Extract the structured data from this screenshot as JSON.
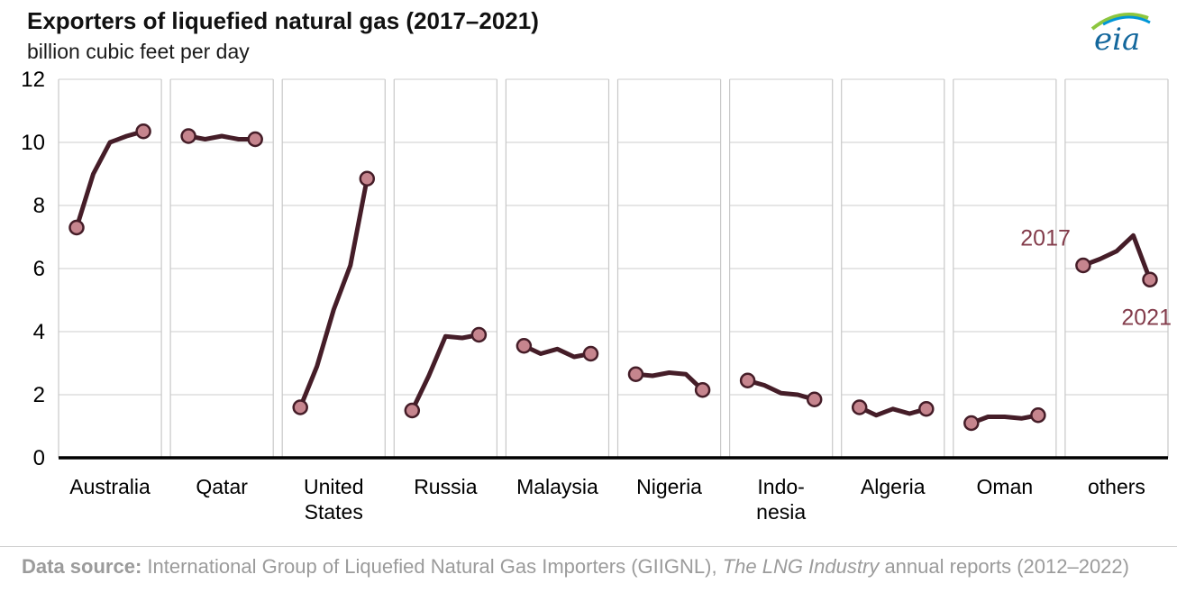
{
  "title": "Exporters of liquefied natural gas (2017–2021)",
  "subtitle": "billion cubic feet per day",
  "logo": {
    "text": "eia"
  },
  "footer": {
    "prefix": "Data source: ",
    "part1": "International Group of Liquefied Natural Gas Importers (GIIGNL), ",
    "italic_part": "The LNG Industry",
    "part2": " annual reports (2012–2022)"
  },
  "colors": {
    "line": "#451d28",
    "marker_fill": "#c6858e",
    "annotation": "#833c4b",
    "grid": "#d8d8d8",
    "panel_border": "#c8c8c8",
    "axis": "#000000",
    "tick_text": "#000000"
  },
  "chart_data": {
    "type": "line",
    "title": "Exporters of liquefied natural gas (2017–2021)",
    "ylabel": "billion cubic feet per day",
    "x": [
      2017,
      2018,
      2019,
      2020,
      2021
    ],
    "ylim": [
      0,
      12
    ],
    "yticks": [
      0,
      2,
      4,
      6,
      8,
      10,
      12
    ],
    "grid": true,
    "legend": "none",
    "annotations": {
      "first_point_label": "2017",
      "last_point_label": "2021"
    },
    "series": [
      {
        "name": "Australia",
        "label": "Australia",
        "values": [
          7.3,
          9.0,
          10.0,
          10.2,
          10.35
        ]
      },
      {
        "name": "Qatar",
        "label": "Qatar",
        "values": [
          10.2,
          10.1,
          10.2,
          10.1,
          10.1
        ]
      },
      {
        "name": "United States",
        "label": "United\nStates",
        "values": [
          1.6,
          2.9,
          4.7,
          6.1,
          8.85
        ]
      },
      {
        "name": "Russia",
        "label": "Russia",
        "values": [
          1.5,
          2.6,
          3.85,
          3.8,
          3.9
        ]
      },
      {
        "name": "Malaysia",
        "label": "Malaysia",
        "values": [
          3.55,
          3.3,
          3.45,
          3.2,
          3.3
        ]
      },
      {
        "name": "Nigeria",
        "label": "Nigeria",
        "values": [
          2.65,
          2.6,
          2.7,
          2.65,
          2.15
        ]
      },
      {
        "name": "Indonesia",
        "label": "Indo-\nnesia",
        "values": [
          2.45,
          2.3,
          2.05,
          2.0,
          1.85
        ]
      },
      {
        "name": "Algeria",
        "label": "Algeria",
        "values": [
          1.6,
          1.35,
          1.55,
          1.4,
          1.55
        ]
      },
      {
        "name": "Oman",
        "label": "Oman",
        "values": [
          1.1,
          1.3,
          1.3,
          1.25,
          1.35
        ]
      },
      {
        "name": "others",
        "label": "others",
        "values": [
          6.1,
          6.3,
          6.55,
          7.05,
          5.65
        ]
      }
    ]
  }
}
